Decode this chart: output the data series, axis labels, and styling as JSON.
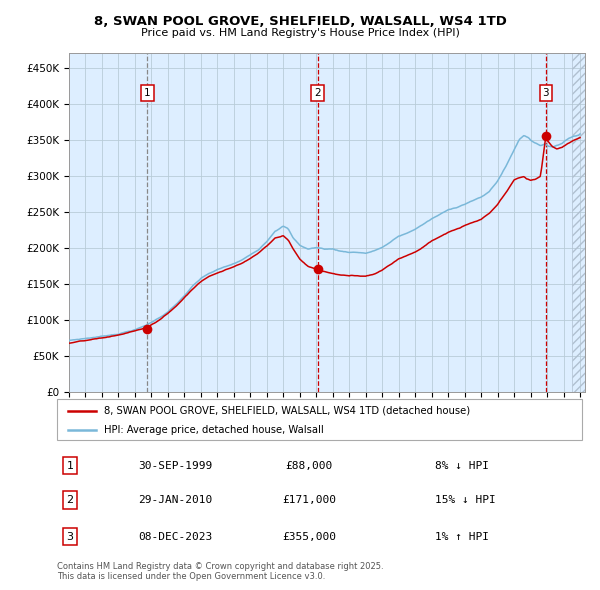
{
  "title": "8, SWAN POOL GROVE, SHELFIELD, WALSALL, WS4 1TD",
  "subtitle": "Price paid vs. HM Land Registry's House Price Index (HPI)",
  "legend_house": "8, SWAN POOL GROVE, SHELFIELD, WALSALL, WS4 1TD (detached house)",
  "legend_hpi": "HPI: Average price, detached house, Walsall",
  "footer": "Contains HM Land Registry data © Crown copyright and database right 2025.\nThis data is licensed under the Open Government Licence v3.0.",
  "sales": [
    {
      "num": 1,
      "date": "30-SEP-1999",
      "price": 88000,
      "note": "8% ↓ HPI"
    },
    {
      "num": 2,
      "date": "29-JAN-2010",
      "price": 171000,
      "note": "15% ↓ HPI"
    },
    {
      "num": 3,
      "date": "08-DEC-2023",
      "price": 355000,
      "note": "1% ↑ HPI"
    }
  ],
  "sale_dates_decimal": [
    1999.75,
    2010.08,
    2023.92
  ],
  "sale_prices": [
    88000,
    171000,
    355000
  ],
  "ylim": [
    0,
    470000
  ],
  "yticks": [
    0,
    50000,
    100000,
    150000,
    200000,
    250000,
    300000,
    350000,
    400000,
    450000
  ],
  "hpi_color": "#7ab8d9",
  "house_color": "#cc0000",
  "bg_color": "#ddeeff",
  "grid_color": "#c8d8e8",
  "box_color": "#cc0000",
  "hatch_color": "#b0c0d0"
}
